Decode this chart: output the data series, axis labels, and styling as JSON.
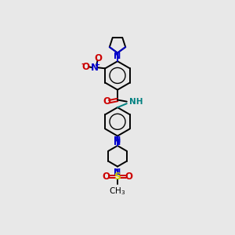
{
  "bg_color": "#e8e8e8",
  "bond_color": "#000000",
  "nitrogen_color": "#0000cc",
  "oxygen_color": "#cc0000",
  "sulfur_color": "#cccc00",
  "NH_color": "#008080",
  "lw": 1.4,
  "xlim": [
    0,
    10
  ],
  "ylim": [
    0,
    14
  ],
  "figsize": [
    3.0,
    3.0
  ],
  "dpi": 100
}
